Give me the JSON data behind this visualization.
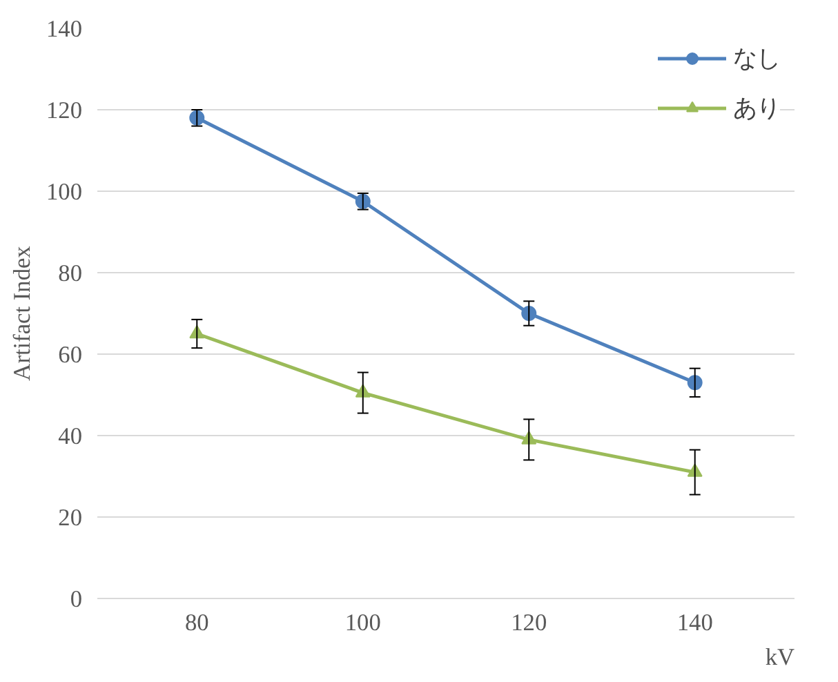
{
  "chart_data": {
    "type": "line",
    "xlabel": "kV",
    "ylabel": "Artifact Index",
    "categories": [
      "80",
      "100",
      "120",
      "140"
    ],
    "series": [
      {
        "name": "なし",
        "color": "#4f81bd",
        "marker": "circle",
        "values": [
          118,
          97.5,
          70,
          53
        ],
        "errors": [
          2,
          2,
          3,
          3.5
        ]
      },
      {
        "name": "あり",
        "color": "#9bbb59",
        "marker": "triangle",
        "values": [
          65,
          50.5,
          39,
          31
        ],
        "errors": [
          3.5,
          5,
          5,
          5.5
        ]
      }
    ],
    "ylim": [
      0,
      140
    ],
    "yticks": [
      0,
      20,
      40,
      60,
      80,
      100,
      120,
      140
    ],
    "grid": "y",
    "legend": "top right"
  }
}
